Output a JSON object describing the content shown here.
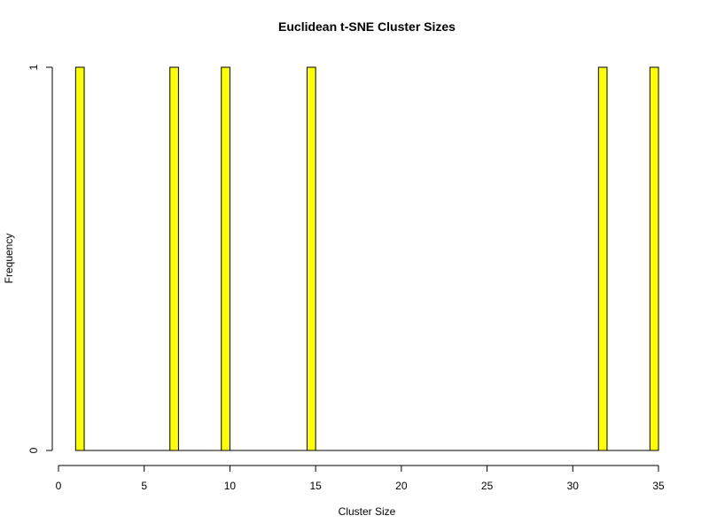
{
  "chart_data": {
    "type": "bar",
    "title": "Euclidean t-SNE Cluster Sizes",
    "xlabel": "Cluster Size",
    "ylabel": "Frequency",
    "x_bin_width": 0.5,
    "bins": [
      {
        "start": 1,
        "end": 1.5,
        "count": 1
      },
      {
        "start": 6.5,
        "end": 7,
        "count": 1
      },
      {
        "start": 9.5,
        "end": 10,
        "count": 1
      },
      {
        "start": 14.5,
        "end": 15,
        "count": 1
      },
      {
        "start": 31.5,
        "end": 32,
        "count": 1
      },
      {
        "start": 34.5,
        "end": 35,
        "count": 1
      }
    ],
    "xlim": [
      0,
      35
    ],
    "ylim": [
      0,
      1
    ],
    "xticks": [
      0,
      5,
      10,
      15,
      20,
      25,
      30,
      35
    ],
    "yticks": [
      0,
      1
    ],
    "bar_color": "#ffff00",
    "border_color": "#000000",
    "grid": false,
    "legend": "none"
  }
}
